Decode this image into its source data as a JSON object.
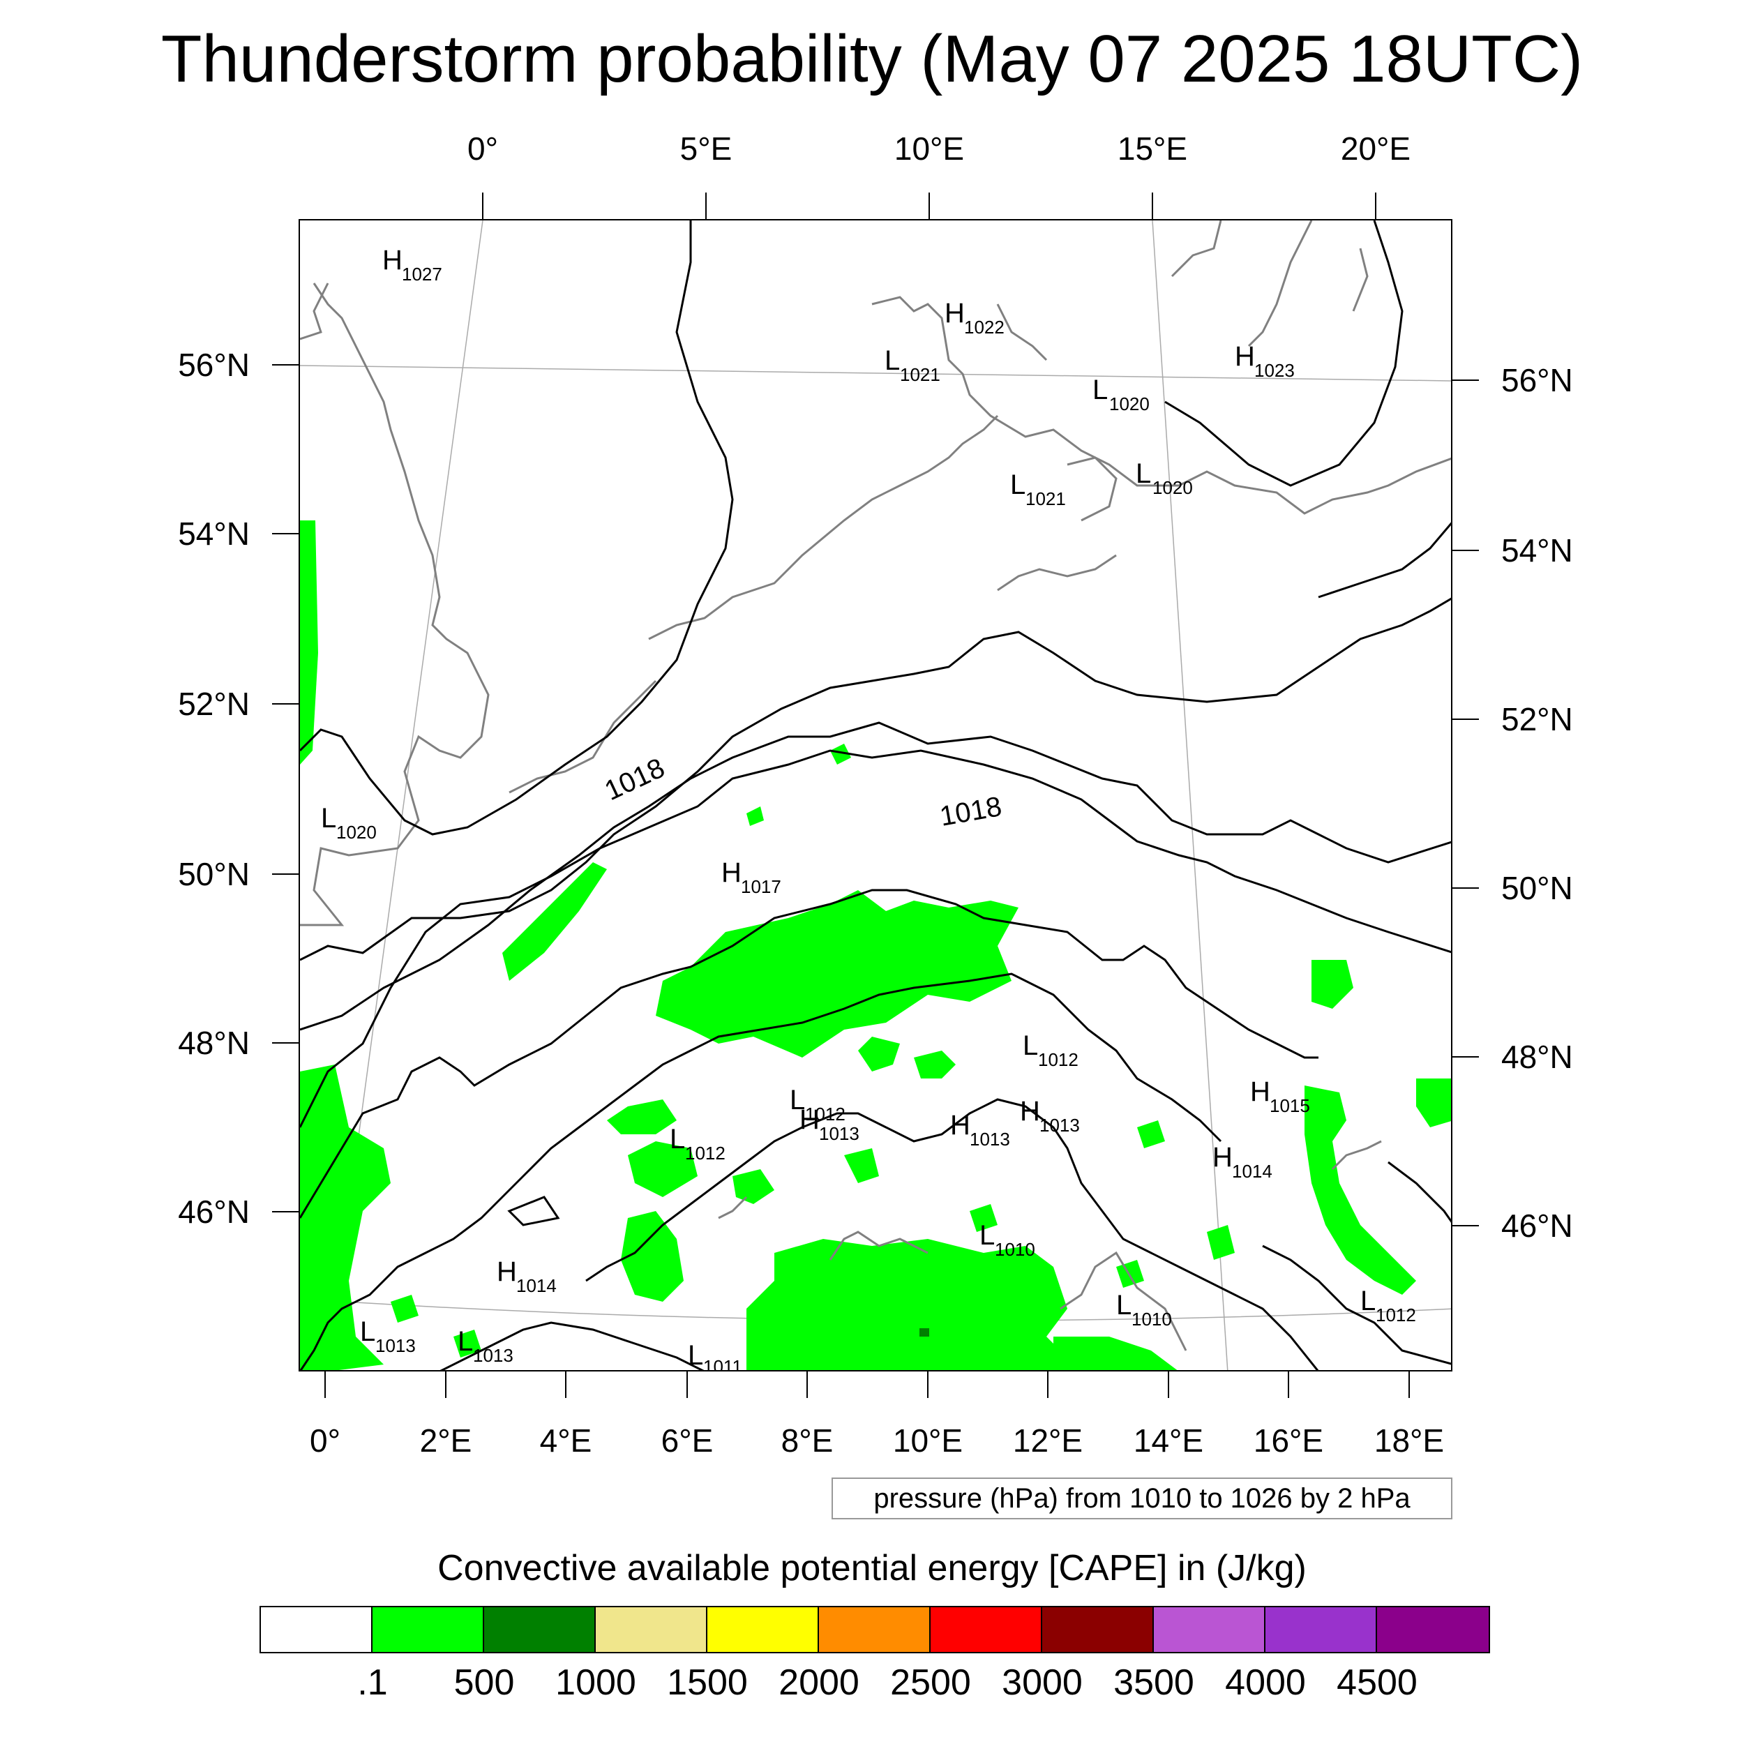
{
  "title": "Thunderstorm probability (May 07 2025 18UTC)",
  "top_axis_labels": [
    "0°",
    "5°E",
    "10°E",
    "15°E",
    "20°E"
  ],
  "bottom_axis_labels": [
    "0°",
    "2°E",
    "4°E",
    "6°E",
    "8°E",
    "10°E",
    "12°E",
    "14°E",
    "16°E",
    "18°E"
  ],
  "left_axis_labels": [
    "56°N",
    "54°N",
    "52°N",
    "50°N",
    "48°N",
    "46°N"
  ],
  "right_axis_labels": [
    "56°N",
    "54°N",
    "52°N",
    "50°N",
    "48°N",
    "46°N"
  ],
  "contour_labels": [
    "1018",
    "1018"
  ],
  "pressure_centers": [
    {
      "letter": "H",
      "value": "1027"
    },
    {
      "letter": "H",
      "value": "1022"
    },
    {
      "letter": "L",
      "value": "1021"
    },
    {
      "letter": "L",
      "value": "1020"
    },
    {
      "letter": "H",
      "value": "1023"
    },
    {
      "letter": "L",
      "value": "1021"
    },
    {
      "letter": "L",
      "value": "1020"
    },
    {
      "letter": "L",
      "value": "1020"
    },
    {
      "letter": "H",
      "value": "1017"
    },
    {
      "letter": "L",
      "value": "1012"
    },
    {
      "letter": "L",
      "value": "1012"
    },
    {
      "letter": "H",
      "value": "1013"
    },
    {
      "letter": "H",
      "value": "1013"
    },
    {
      "letter": "H",
      "value": "1013"
    },
    {
      "letter": "H",
      "value": "1015"
    },
    {
      "letter": "H",
      "value": "1014"
    },
    {
      "letter": "L",
      "value": "1012"
    },
    {
      "letter": "H",
      "value": "1014"
    },
    {
      "letter": "L",
      "value": "1010"
    },
    {
      "letter": "L",
      "value": "1010"
    },
    {
      "letter": "L",
      "value": "1012"
    },
    {
      "letter": "L",
      "value": "1013"
    },
    {
      "letter": "L",
      "value": "1013"
    },
    {
      "letter": "L",
      "value": "1011"
    }
  ],
  "info_box": "pressure (hPa) from 1010 to 1026 by 2 hPa",
  "colorbar": {
    "title": "Convective available potential energy [CAPE] in (J/kg)",
    "colors": [
      "#ffffff",
      "#00ff00",
      "#008000",
      "#f0e68c",
      "#ffff00",
      "#ff8c00",
      "#ff0000",
      "#8b0000",
      "#ba55d3",
      "#9932cc",
      "#8b008b"
    ],
    "labels": [
      ".1",
      "500",
      "1000",
      "1500",
      "2000",
      "2500",
      "3000",
      "3500",
      "4000",
      "4500"
    ]
  },
  "colors": {
    "coastline": "#808080",
    "isobar": "#000000",
    "cape_low": "#00ff00",
    "cape_mid": "#008000",
    "graticule": "#aaaaaa"
  }
}
